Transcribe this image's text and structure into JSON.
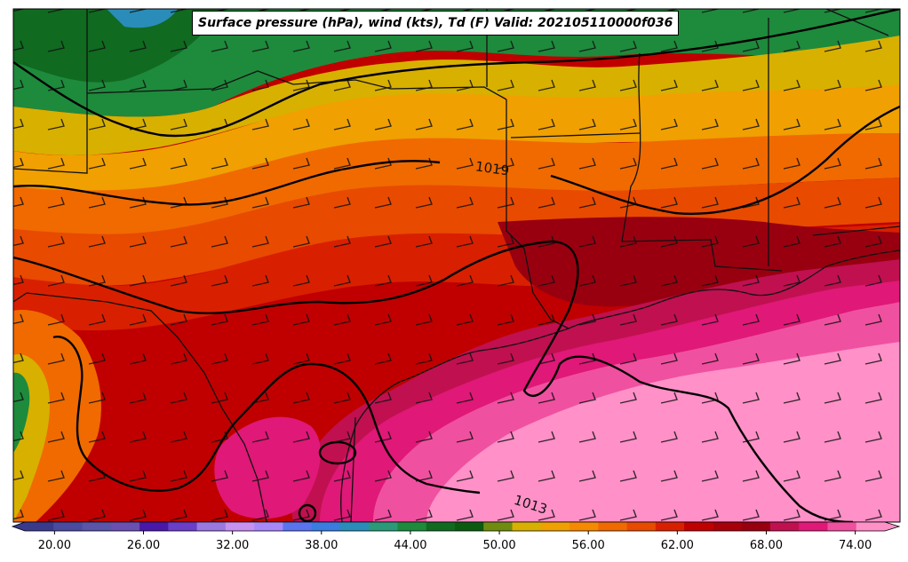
{
  "title": "Surface pressure (hPa), wind (kts), Td (F) Valid: 202105110000f036",
  "contour_labels": [
    "1019",
    "1013"
  ],
  "colorbar": {
    "tick_labels": [
      "20.00",
      "26.00",
      "32.00",
      "38.00",
      "44.00",
      "50.00",
      "56.00",
      "62.00",
      "68.00",
      "74.00"
    ],
    "min": 18,
    "max": 76,
    "colors": [
      "#3a3a8c",
      "#4a4aa0",
      "#5a55a8",
      "#6a50b0",
      "#4a18a8",
      "#6a3ec8",
      "#9a78e0",
      "#c890f0",
      "#a888f8",
      "#5a74f0",
      "#3a7ce0",
      "#2a8cb8",
      "#2a9a78",
      "#1e8a3c",
      "#106a20",
      "#0a5a10",
      "#6f8c10",
      "#d8b000",
      "#f0a000",
      "#f58a00",
      "#f06a00",
      "#e84a00",
      "#d82000",
      "#c00000",
      "#a80008",
      "#980010",
      "#c01050",
      "#e01878",
      "#f050a0",
      "#ff90c8"
    ]
  }
}
